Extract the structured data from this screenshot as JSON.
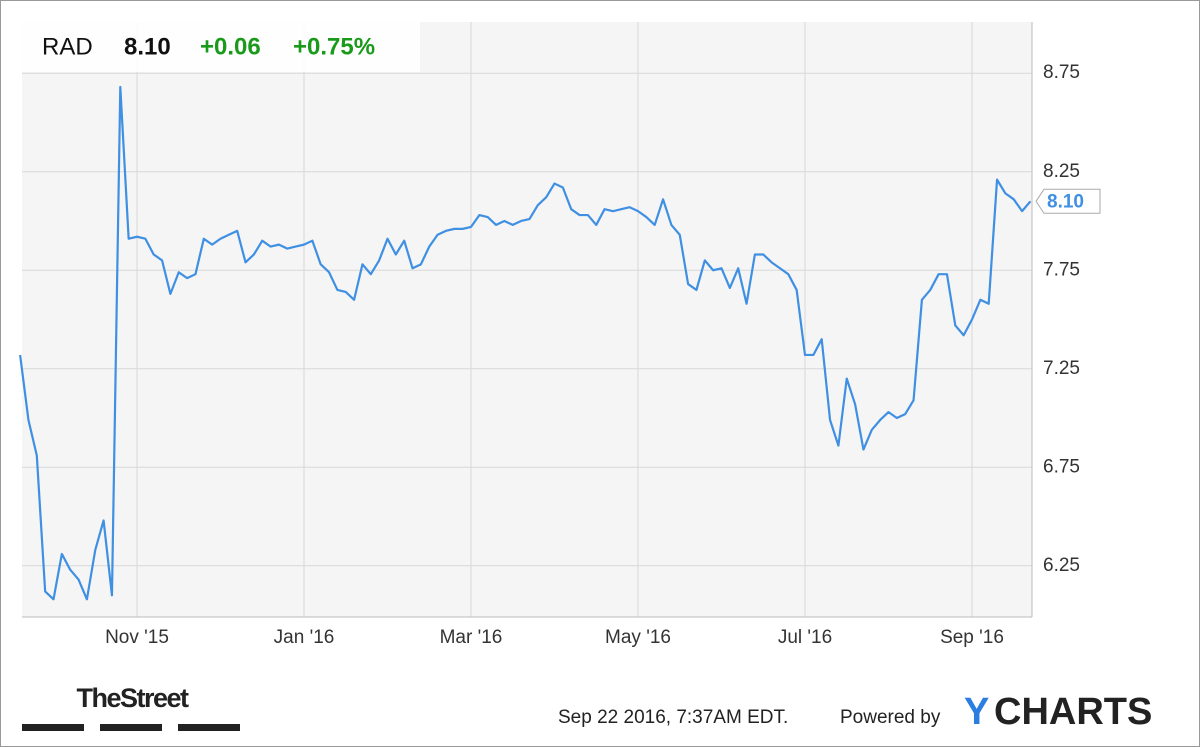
{
  "chart_data": {
    "type": "line",
    "header": {
      "symbol": "RAD",
      "price": "8.10",
      "change": "+0.06",
      "change_percent": "+0.75%"
    },
    "categories": [
      null,
      null,
      null,
      null,
      null,
      null,
      null,
      null,
      null,
      null,
      null,
      null,
      null,
      null,
      "Nov '15",
      null,
      null,
      null,
      null,
      null,
      null,
      null,
      null,
      null,
      null,
      null,
      null,
      null,
      null,
      null,
      null,
      null,
      null,
      null,
      "Jan '16",
      null,
      null,
      null,
      null,
      null,
      null,
      null,
      null,
      null,
      null,
      null,
      null,
      null,
      null,
      null,
      null,
      null,
      null,
      null,
      "Mar '16",
      null,
      null,
      null,
      null,
      null,
      null,
      null,
      null,
      null,
      null,
      null,
      null,
      null,
      null,
      null,
      null,
      null,
      null,
      null,
      "May '16",
      null,
      null,
      null,
      null,
      null,
      null,
      null,
      null,
      null,
      null,
      null,
      null,
      null,
      null,
      null,
      null,
      null,
      null,
      null,
      "Jul '16",
      null,
      null,
      null,
      null,
      null,
      null,
      null,
      null,
      null,
      null,
      null,
      null,
      null,
      null,
      null,
      null,
      null,
      null,
      null,
      "Sep '16",
      null,
      null,
      null,
      null,
      null,
      null,
      null
    ],
    "series": [
      {
        "name": "RAD",
        "color": "#3f8fe3",
        "values": [
          7.32,
          6.99,
          6.81,
          6.12,
          6.08,
          6.31,
          6.23,
          6.18,
          6.08,
          6.33,
          6.48,
          6.1,
          8.68,
          7.91,
          7.92,
          7.91,
          7.83,
          7.8,
          7.63,
          7.74,
          7.71,
          7.73,
          7.91,
          7.88,
          7.91,
          7.93,
          7.95,
          7.79,
          7.83,
          7.9,
          7.87,
          7.88,
          7.86,
          7.87,
          7.88,
          7.9,
          7.78,
          7.74,
          7.65,
          7.64,
          7.6,
          7.78,
          7.73,
          7.8,
          7.91,
          7.83,
          7.9,
          7.76,
          7.78,
          7.87,
          7.93,
          7.95,
          7.96,
          7.96,
          7.97,
          8.03,
          8.02,
          7.98,
          8.0,
          7.98,
          8.0,
          8.01,
          8.08,
          8.12,
          8.19,
          8.17,
          8.06,
          8.03,
          8.03,
          7.98,
          8.06,
          8.05,
          8.06,
          8.07,
          8.05,
          8.02,
          7.98,
          8.11,
          7.98,
          7.93,
          7.68,
          7.65,
          7.8,
          7.75,
          7.76,
          7.66,
          7.76,
          7.58,
          7.83,
          7.83,
          7.79,
          7.76,
          7.73,
          7.65,
          7.32,
          7.32,
          7.4,
          6.99,
          6.86,
          7.2,
          7.07,
          6.84,
          6.94,
          6.99,
          7.03,
          7.0,
          7.02,
          7.09,
          7.6,
          7.65,
          7.73,
          7.73,
          7.47,
          7.42,
          7.5,
          7.6,
          7.58,
          8.21,
          8.14,
          8.11,
          8.05,
          8.1
        ]
      }
    ],
    "ylim": [
      5.99,
      9.01
    ],
    "yticks": [
      6.25,
      6.75,
      7.25,
      7.75,
      8.25,
      8.75
    ],
    "grid": true,
    "footer": {
      "timestamp": "Sep 22 2016, 7:37AM EDT.",
      "powered_by": "Powered by",
      "brand_mark": "Y",
      "brand_rest": "CHARTS",
      "source": "TheStreet"
    }
  }
}
